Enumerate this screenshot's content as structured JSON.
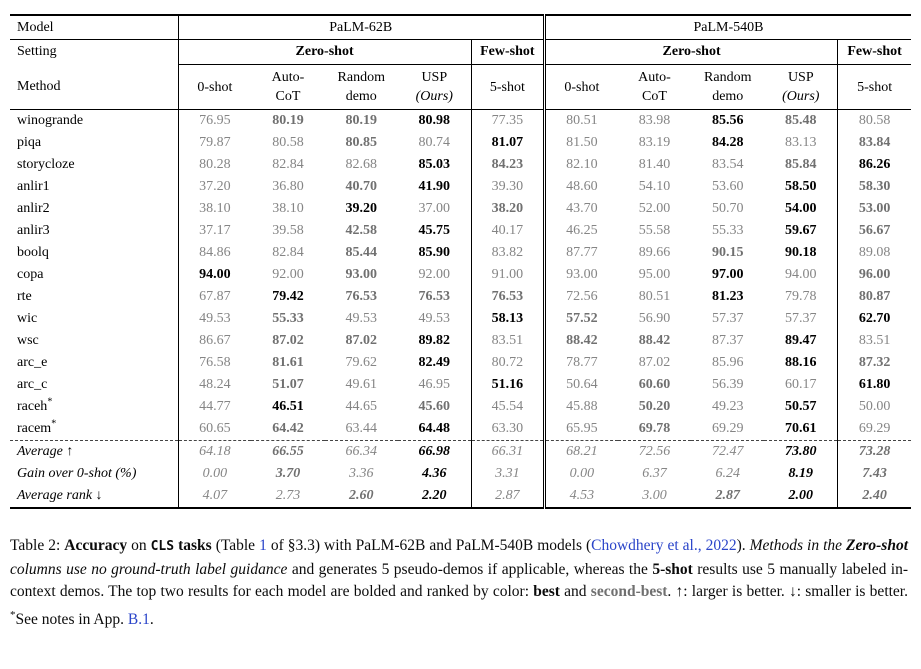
{
  "colors": {
    "best": "#000000",
    "second_best": "#707070",
    "normal_value": "#858585",
    "link": "#2a44c9",
    "rule": "#000000"
  },
  "table": {
    "header": {
      "col1": {
        "model": "Model",
        "setting": "Setting",
        "method": "Method"
      },
      "groups": [
        {
          "model": "PaLM-62B"
        },
        {
          "model": "PaLM-540B"
        }
      ],
      "zero_shot": "Zero-shot",
      "few_shot": "Few-shot",
      "methods": {
        "m0": "0-shot",
        "m1a": "Auto-",
        "m1b": "CoT",
        "m2a": "Random",
        "m2b": "demo",
        "m3a": "USP",
        "m3b": "(Ours)",
        "m4": "5-shot"
      }
    },
    "rows": [
      {
        "label": "winogrande",
        "cells": [
          [
            "76.95",
            "n"
          ],
          [
            "80.19",
            "s"
          ],
          [
            "80.19",
            "s"
          ],
          [
            "80.98",
            "b"
          ],
          [
            "77.35",
            "n"
          ],
          [
            "80.51",
            "n"
          ],
          [
            "83.98",
            "n"
          ],
          [
            "85.56",
            "b"
          ],
          [
            "85.48",
            "s"
          ],
          [
            "80.58",
            "n"
          ]
        ]
      },
      {
        "label": "piqa",
        "cells": [
          [
            "79.87",
            "n"
          ],
          [
            "80.58",
            "n"
          ],
          [
            "80.85",
            "s"
          ],
          [
            "80.74",
            "n"
          ],
          [
            "81.07",
            "b"
          ],
          [
            "81.50",
            "n"
          ],
          [
            "83.19",
            "n"
          ],
          [
            "84.28",
            "b"
          ],
          [
            "83.13",
            "n"
          ],
          [
            "83.84",
            "s"
          ]
        ]
      },
      {
        "label": "storycloze",
        "cells": [
          [
            "80.28",
            "n"
          ],
          [
            "82.84",
            "n"
          ],
          [
            "82.68",
            "n"
          ],
          [
            "85.03",
            "b"
          ],
          [
            "84.23",
            "s"
          ],
          [
            "82.10",
            "n"
          ],
          [
            "81.40",
            "n"
          ],
          [
            "83.54",
            "n"
          ],
          [
            "85.84",
            "s"
          ],
          [
            "86.26",
            "b"
          ]
        ]
      },
      {
        "label": "anlir1",
        "cells": [
          [
            "37.20",
            "n"
          ],
          [
            "36.80",
            "n"
          ],
          [
            "40.70",
            "s"
          ],
          [
            "41.90",
            "b"
          ],
          [
            "39.30",
            "n"
          ],
          [
            "48.60",
            "n"
          ],
          [
            "54.10",
            "n"
          ],
          [
            "53.60",
            "n"
          ],
          [
            "58.50",
            "b"
          ],
          [
            "58.30",
            "s"
          ]
        ]
      },
      {
        "label": "anlir2",
        "cells": [
          [
            "38.10",
            "n"
          ],
          [
            "38.10",
            "n"
          ],
          [
            "39.20",
            "b"
          ],
          [
            "37.00",
            "n"
          ],
          [
            "38.20",
            "s"
          ],
          [
            "43.70",
            "n"
          ],
          [
            "52.00",
            "n"
          ],
          [
            "50.70",
            "n"
          ],
          [
            "54.00",
            "b"
          ],
          [
            "53.00",
            "s"
          ]
        ]
      },
      {
        "label": "anlir3",
        "cells": [
          [
            "37.17",
            "n"
          ],
          [
            "39.58",
            "n"
          ],
          [
            "42.58",
            "s"
          ],
          [
            "45.75",
            "b"
          ],
          [
            "40.17",
            "n"
          ],
          [
            "46.25",
            "n"
          ],
          [
            "55.58",
            "n"
          ],
          [
            "55.33",
            "n"
          ],
          [
            "59.67",
            "b"
          ],
          [
            "56.67",
            "s"
          ]
        ]
      },
      {
        "label": "boolq",
        "cells": [
          [
            "84.86",
            "n"
          ],
          [
            "82.84",
            "n"
          ],
          [
            "85.44",
            "s"
          ],
          [
            "85.90",
            "b"
          ],
          [
            "83.82",
            "n"
          ],
          [
            "87.77",
            "n"
          ],
          [
            "89.66",
            "n"
          ],
          [
            "90.15",
            "s"
          ],
          [
            "90.18",
            "b"
          ],
          [
            "89.08",
            "n"
          ]
        ]
      },
      {
        "label": "copa",
        "cells": [
          [
            "94.00",
            "b"
          ],
          [
            "92.00",
            "n"
          ],
          [
            "93.00",
            "s"
          ],
          [
            "92.00",
            "n"
          ],
          [
            "91.00",
            "n"
          ],
          [
            "93.00",
            "n"
          ],
          [
            "95.00",
            "n"
          ],
          [
            "97.00",
            "b"
          ],
          [
            "94.00",
            "n"
          ],
          [
            "96.00",
            "s"
          ]
        ]
      },
      {
        "label": "rte",
        "cells": [
          [
            "67.87",
            "n"
          ],
          [
            "79.42",
            "b"
          ],
          [
            "76.53",
            "s"
          ],
          [
            "76.53",
            "s"
          ],
          [
            "76.53",
            "s"
          ],
          [
            "72.56",
            "n"
          ],
          [
            "80.51",
            "n"
          ],
          [
            "81.23",
            "b"
          ],
          [
            "79.78",
            "n"
          ],
          [
            "80.87",
            "s"
          ]
        ]
      },
      {
        "label": "wic",
        "cells": [
          [
            "49.53",
            "n"
          ],
          [
            "55.33",
            "s"
          ],
          [
            "49.53",
            "n"
          ],
          [
            "49.53",
            "n"
          ],
          [
            "58.13",
            "b"
          ],
          [
            "57.52",
            "s"
          ],
          [
            "56.90",
            "n"
          ],
          [
            "57.37",
            "n"
          ],
          [
            "57.37",
            "n"
          ],
          [
            "62.70",
            "b"
          ]
        ]
      },
      {
        "label": "wsc",
        "cells": [
          [
            "86.67",
            "n"
          ],
          [
            "87.02",
            "s"
          ],
          [
            "87.02",
            "s"
          ],
          [
            "89.82",
            "b"
          ],
          [
            "83.51",
            "n"
          ],
          [
            "88.42",
            "s"
          ],
          [
            "88.42",
            "s"
          ],
          [
            "87.37",
            "n"
          ],
          [
            "89.47",
            "b"
          ],
          [
            "83.51",
            "n"
          ]
        ]
      },
      {
        "label": "arc_e",
        "cells": [
          [
            "76.58",
            "n"
          ],
          [
            "81.61",
            "s"
          ],
          [
            "79.62",
            "n"
          ],
          [
            "82.49",
            "b"
          ],
          [
            "80.72",
            "n"
          ],
          [
            "78.77",
            "n"
          ],
          [
            "87.02",
            "n"
          ],
          [
            "85.96",
            "n"
          ],
          [
            "88.16",
            "b"
          ],
          [
            "87.32",
            "s"
          ]
        ]
      },
      {
        "label": "arc_c",
        "cells": [
          [
            "48.24",
            "n"
          ],
          [
            "51.07",
            "s"
          ],
          [
            "49.61",
            "n"
          ],
          [
            "46.95",
            "n"
          ],
          [
            "51.16",
            "b"
          ],
          [
            "50.64",
            "n"
          ],
          [
            "60.60",
            "s"
          ],
          [
            "56.39",
            "n"
          ],
          [
            "60.17",
            "n"
          ],
          [
            "61.80",
            "b"
          ]
        ]
      },
      {
        "label": "raceh",
        "sup": "*",
        "cells": [
          [
            "44.77",
            "n"
          ],
          [
            "46.51",
            "b"
          ],
          [
            "44.65",
            "n"
          ],
          [
            "45.60",
            "s"
          ],
          [
            "45.54",
            "n"
          ],
          [
            "45.88",
            "n"
          ],
          [
            "50.20",
            "s"
          ],
          [
            "49.23",
            "n"
          ],
          [
            "50.57",
            "b"
          ],
          [
            "50.00",
            "n"
          ]
        ]
      },
      {
        "label": "racem",
        "sup": "*",
        "cells": [
          [
            "60.65",
            "n"
          ],
          [
            "64.42",
            "s"
          ],
          [
            "63.44",
            "n"
          ],
          [
            "64.48",
            "b"
          ],
          [
            "63.30",
            "n"
          ],
          [
            "65.95",
            "n"
          ],
          [
            "69.78",
            "s"
          ],
          [
            "69.29",
            "n"
          ],
          [
            "70.61",
            "b"
          ],
          [
            "69.29",
            "n"
          ]
        ]
      },
      {
        "label": "Average ↑",
        "summary": true,
        "dash": true,
        "cells": [
          [
            "64.18",
            "n"
          ],
          [
            "66.55",
            "s"
          ],
          [
            "66.34",
            "n"
          ],
          [
            "66.98",
            "b"
          ],
          [
            "66.31",
            "n"
          ],
          [
            "68.21",
            "n"
          ],
          [
            "72.56",
            "n"
          ],
          [
            "72.47",
            "n"
          ],
          [
            "73.80",
            "b"
          ],
          [
            "73.28",
            "s"
          ]
        ]
      },
      {
        "label": "Gain over 0-shot (%)",
        "summary": true,
        "cells": [
          [
            "0.00",
            "n"
          ],
          [
            "3.70",
            "s"
          ],
          [
            "3.36",
            "n"
          ],
          [
            "4.36",
            "b"
          ],
          [
            "3.31",
            "n"
          ],
          [
            "0.00",
            "n"
          ],
          [
            "6.37",
            "n"
          ],
          [
            "6.24",
            "n"
          ],
          [
            "8.19",
            "b"
          ],
          [
            "7.43",
            "s"
          ]
        ]
      },
      {
        "label": "Average rank ↓",
        "summary": true,
        "cells": [
          [
            "4.07",
            "n"
          ],
          [
            "2.73",
            "n"
          ],
          [
            "2.60",
            "s"
          ],
          [
            "2.20",
            "b"
          ],
          [
            "2.87",
            "n"
          ],
          [
            "4.53",
            "n"
          ],
          [
            "3.00",
            "n"
          ],
          [
            "2.87",
            "s"
          ],
          [
            "2.00",
            "b"
          ],
          [
            "2.40",
            "s"
          ]
        ]
      }
    ]
  },
  "caption": {
    "segments": [
      {
        "t": "Table 2: ",
        "s": "r"
      },
      {
        "t": "Accuracy",
        "s": "b"
      },
      {
        "t": " on ",
        "s": "r"
      },
      {
        "t": "CLS",
        "s": "mono"
      },
      {
        "t": " ",
        "s": "r"
      },
      {
        "t": "tasks",
        "s": "b"
      },
      {
        "t": " (Table ",
        "s": "r"
      },
      {
        "t": "1",
        "s": "link",
        "n": "table-ref-link"
      },
      {
        "t": " of §3.3) with PaLM-62B and PaLM-540B models (",
        "s": "r"
      },
      {
        "t": "Chowdhery et al., 2022",
        "s": "link",
        "n": "citation-link"
      },
      {
        "t": "). ",
        "s": "r"
      },
      {
        "t": "Methods in the ",
        "s": "i"
      },
      {
        "t": "Zero-shot",
        "s": "bi"
      },
      {
        "t": " columns use no ground-truth label guidance",
        "s": "i"
      },
      {
        "t": " and generates 5 pseudo-demos if applicable, whereas the ",
        "s": "r"
      },
      {
        "t": "5-shot",
        "s": "b"
      },
      {
        "t": " results use 5 manually labeled in-context demos. The top two results for each model are bolded and ranked by color: ",
        "s": "r"
      },
      {
        "t": "best",
        "s": "b"
      },
      {
        "t": " and ",
        "s": "r"
      },
      {
        "t": "second-best",
        "s": "b2"
      },
      {
        "t": ". ↑: larger is better. ↓: smaller is better. ",
        "s": "r"
      },
      {
        "t": "*",
        "s": "sup"
      },
      {
        "t": "See notes in App. ",
        "s": "r"
      },
      {
        "t": "B.1",
        "s": "link",
        "n": "appendix-ref-link"
      },
      {
        "t": ".",
        "s": "r"
      }
    ]
  }
}
